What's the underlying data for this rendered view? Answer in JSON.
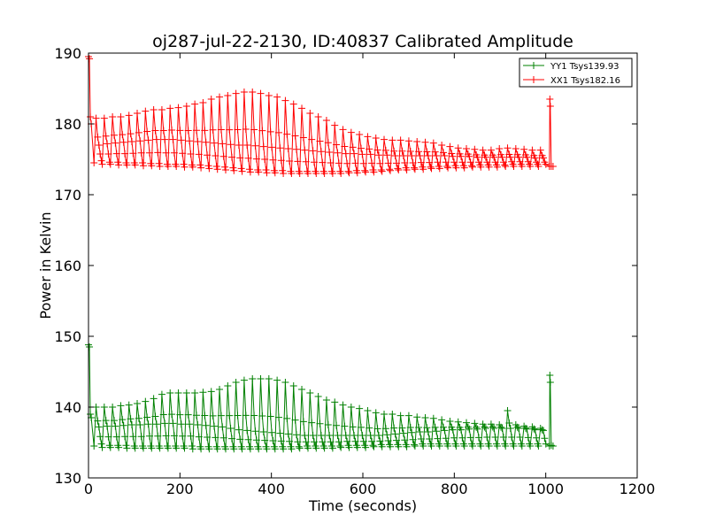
{
  "chart_data": {
    "type": "line",
    "title": "oj287-jul-22-2130, ID:40837 Calibrated Amplitude",
    "xlabel": "Time (seconds)",
    "ylabel": "Power in Kelvin",
    "xlim": [
      0,
      1200
    ],
    "ylim": [
      130,
      190
    ],
    "xticks": [
      0,
      200,
      400,
      600,
      800,
      1000,
      1200
    ],
    "yticks": [
      130,
      140,
      150,
      160,
      170,
      180,
      190
    ],
    "grid": false,
    "legend_position": "top-right",
    "marker": "+",
    "series": [
      {
        "name": "YY1 Tsys139.93",
        "color": "#008000",
        "start_points": [
          [
            0,
            148.8
          ],
          [
            2,
            148.5
          ],
          [
            4,
            139.0
          ],
          [
            6,
            138.5
          ]
        ],
        "end_points": [
          [
            1008,
            134.5
          ],
          [
            1009,
            144.5
          ],
          [
            1010,
            143.5
          ],
          [
            1012,
            134.6
          ],
          [
            1016,
            134.5
          ]
        ],
        "cycle": {
          "x_start": 12,
          "x_end": 1000,
          "period": 18,
          "x": [
            12,
            30,
            48,
            66,
            84,
            102,
            120,
            138,
            156,
            174,
            192,
            210,
            228,
            246,
            264,
            282,
            300,
            318,
            336,
            354,
            372,
            390,
            408,
            426,
            444,
            462,
            480,
            498,
            516,
            534,
            552,
            570,
            588,
            606,
            624,
            642,
            660,
            678,
            696,
            714,
            732,
            750,
            768,
            786,
            804,
            822,
            840,
            858,
            876,
            894,
            912,
            930,
            948,
            966,
            984,
            1000
          ],
          "high": [
            140.0,
            140.0,
            140.0,
            140.2,
            140.3,
            140.5,
            140.8,
            141.2,
            141.8,
            142.0,
            142.0,
            142.0,
            142.0,
            142.1,
            142.2,
            142.5,
            143.0,
            143.5,
            143.8,
            144.0,
            144.0,
            144.0,
            143.8,
            143.5,
            143.0,
            142.5,
            142.0,
            141.5,
            141.0,
            140.7,
            140.3,
            140.0,
            139.8,
            139.5,
            139.2,
            139.0,
            139.0,
            138.8,
            138.8,
            138.6,
            138.5,
            138.4,
            138.2,
            138.0,
            137.9,
            137.8,
            137.7,
            137.6,
            137.6,
            137.5,
            139.5,
            137.5,
            137.3,
            137.2,
            137.0,
            136.8
          ],
          "mid": [
            137.2,
            137.3,
            137.3,
            137.4,
            137.5,
            137.5,
            137.6,
            137.6,
            137.7,
            137.7,
            137.6,
            137.6,
            137.5,
            137.4,
            137.3,
            137.2,
            137.0,
            136.8,
            136.7,
            136.6,
            136.5,
            136.4,
            136.3,
            136.2,
            136.1,
            136.0,
            136.0,
            136.0,
            136.0,
            136.0,
            136.0,
            136.0,
            136.0,
            136.0,
            136.0,
            136.1,
            136.2,
            136.3,
            136.4,
            136.5,
            136.5,
            136.6,
            136.7,
            136.8,
            136.8,
            136.9,
            136.9,
            137.0,
            137.0,
            137.0,
            137.0,
            137.0,
            136.9,
            136.8,
            136.7,
            136.6
          ],
          "low": [
            134.5,
            134.3,
            134.3,
            134.3,
            134.2,
            134.2,
            134.2,
            134.2,
            134.2,
            134.2,
            134.2,
            134.2,
            134.1,
            134.1,
            134.1,
            134.1,
            134.1,
            134.1,
            134.1,
            134.1,
            134.1,
            134.1,
            134.1,
            134.1,
            134.1,
            134.2,
            134.2,
            134.2,
            134.2,
            134.2,
            134.3,
            134.3,
            134.3,
            134.3,
            134.4,
            134.4,
            134.4,
            134.4,
            134.4,
            134.5,
            134.5,
            134.5,
            134.5,
            134.5,
            134.5,
            134.5,
            134.5,
            134.5,
            134.5,
            134.5,
            134.5,
            134.5,
            134.5,
            134.5,
            134.5,
            134.5
          ]
        }
      },
      {
        "name": "XX1 Tsys182.16",
        "color": "#ff0000",
        "start_points": [
          [
            0,
            189.5
          ],
          [
            2,
            189.2
          ],
          [
            4,
            181.0
          ],
          [
            6,
            180.0
          ]
        ],
        "end_points": [
          [
            1008,
            174.0
          ],
          [
            1009,
            183.5
          ],
          [
            1010,
            182.5
          ],
          [
            1012,
            174.0
          ],
          [
            1016,
            174.0
          ]
        ],
        "cycle": {
          "x_start": 12,
          "x_end": 1000,
          "period": 18,
          "x": [
            12,
            30,
            48,
            66,
            84,
            102,
            120,
            138,
            156,
            174,
            192,
            210,
            228,
            246,
            264,
            282,
            300,
            318,
            336,
            354,
            372,
            390,
            408,
            426,
            444,
            462,
            480,
            498,
            516,
            534,
            552,
            570,
            588,
            606,
            624,
            642,
            660,
            678,
            696,
            714,
            732,
            750,
            768,
            786,
            804,
            822,
            840,
            858,
            876,
            894,
            912,
            930,
            948,
            966,
            984,
            1000
          ],
          "high": [
            180.8,
            180.8,
            181.0,
            181.0,
            181.2,
            181.5,
            181.8,
            182.0,
            182.0,
            182.2,
            182.3,
            182.5,
            182.8,
            183.0,
            183.5,
            183.8,
            184.0,
            184.3,
            184.5,
            184.5,
            184.3,
            184.0,
            183.8,
            183.3,
            182.8,
            182.2,
            181.5,
            181.0,
            180.5,
            179.8,
            179.2,
            178.8,
            178.5,
            178.2,
            178.0,
            177.8,
            177.7,
            177.7,
            177.6,
            177.5,
            177.4,
            177.3,
            177.0,
            176.8,
            176.6,
            176.5,
            176.4,
            176.3,
            176.3,
            176.5,
            176.6,
            176.5,
            176.4,
            176.3,
            176.3,
            176.2
          ],
          "mid": [
            177.0,
            177.2,
            177.3,
            177.4,
            177.5,
            177.6,
            177.7,
            177.8,
            177.8,
            177.8,
            177.7,
            177.6,
            177.5,
            177.4,
            177.3,
            177.2,
            177.1,
            177.0,
            177.0,
            176.9,
            176.8,
            176.7,
            176.6,
            176.5,
            176.4,
            176.3,
            176.2,
            176.1,
            176.0,
            175.9,
            175.8,
            175.8,
            175.7,
            175.7,
            175.6,
            175.6,
            175.5,
            175.5,
            175.5,
            175.5,
            175.5,
            175.5,
            175.5,
            175.4,
            175.4,
            175.4,
            175.3,
            175.3,
            175.3,
            175.3,
            175.3,
            175.3,
            175.3,
            175.2,
            175.2,
            175.1
          ],
          "low": [
            174.5,
            174.3,
            174.3,
            174.2,
            174.2,
            174.2,
            174.1,
            174.1,
            174.0,
            174.0,
            174.0,
            173.9,
            173.9,
            173.8,
            173.7,
            173.6,
            173.5,
            173.4,
            173.3,
            173.2,
            173.2,
            173.1,
            173.1,
            173.0,
            173.0,
            173.0,
            173.0,
            173.0,
            173.0,
            173.0,
            173.0,
            173.1,
            173.1,
            173.2,
            173.2,
            173.3,
            173.4,
            173.5,
            173.5,
            173.6,
            173.6,
            173.7,
            173.7,
            173.8,
            173.8,
            173.8,
            173.9,
            173.9,
            173.9,
            173.9,
            174.0,
            174.0,
            174.0,
            174.0,
            174.0,
            174.0
          ]
        }
      }
    ]
  }
}
